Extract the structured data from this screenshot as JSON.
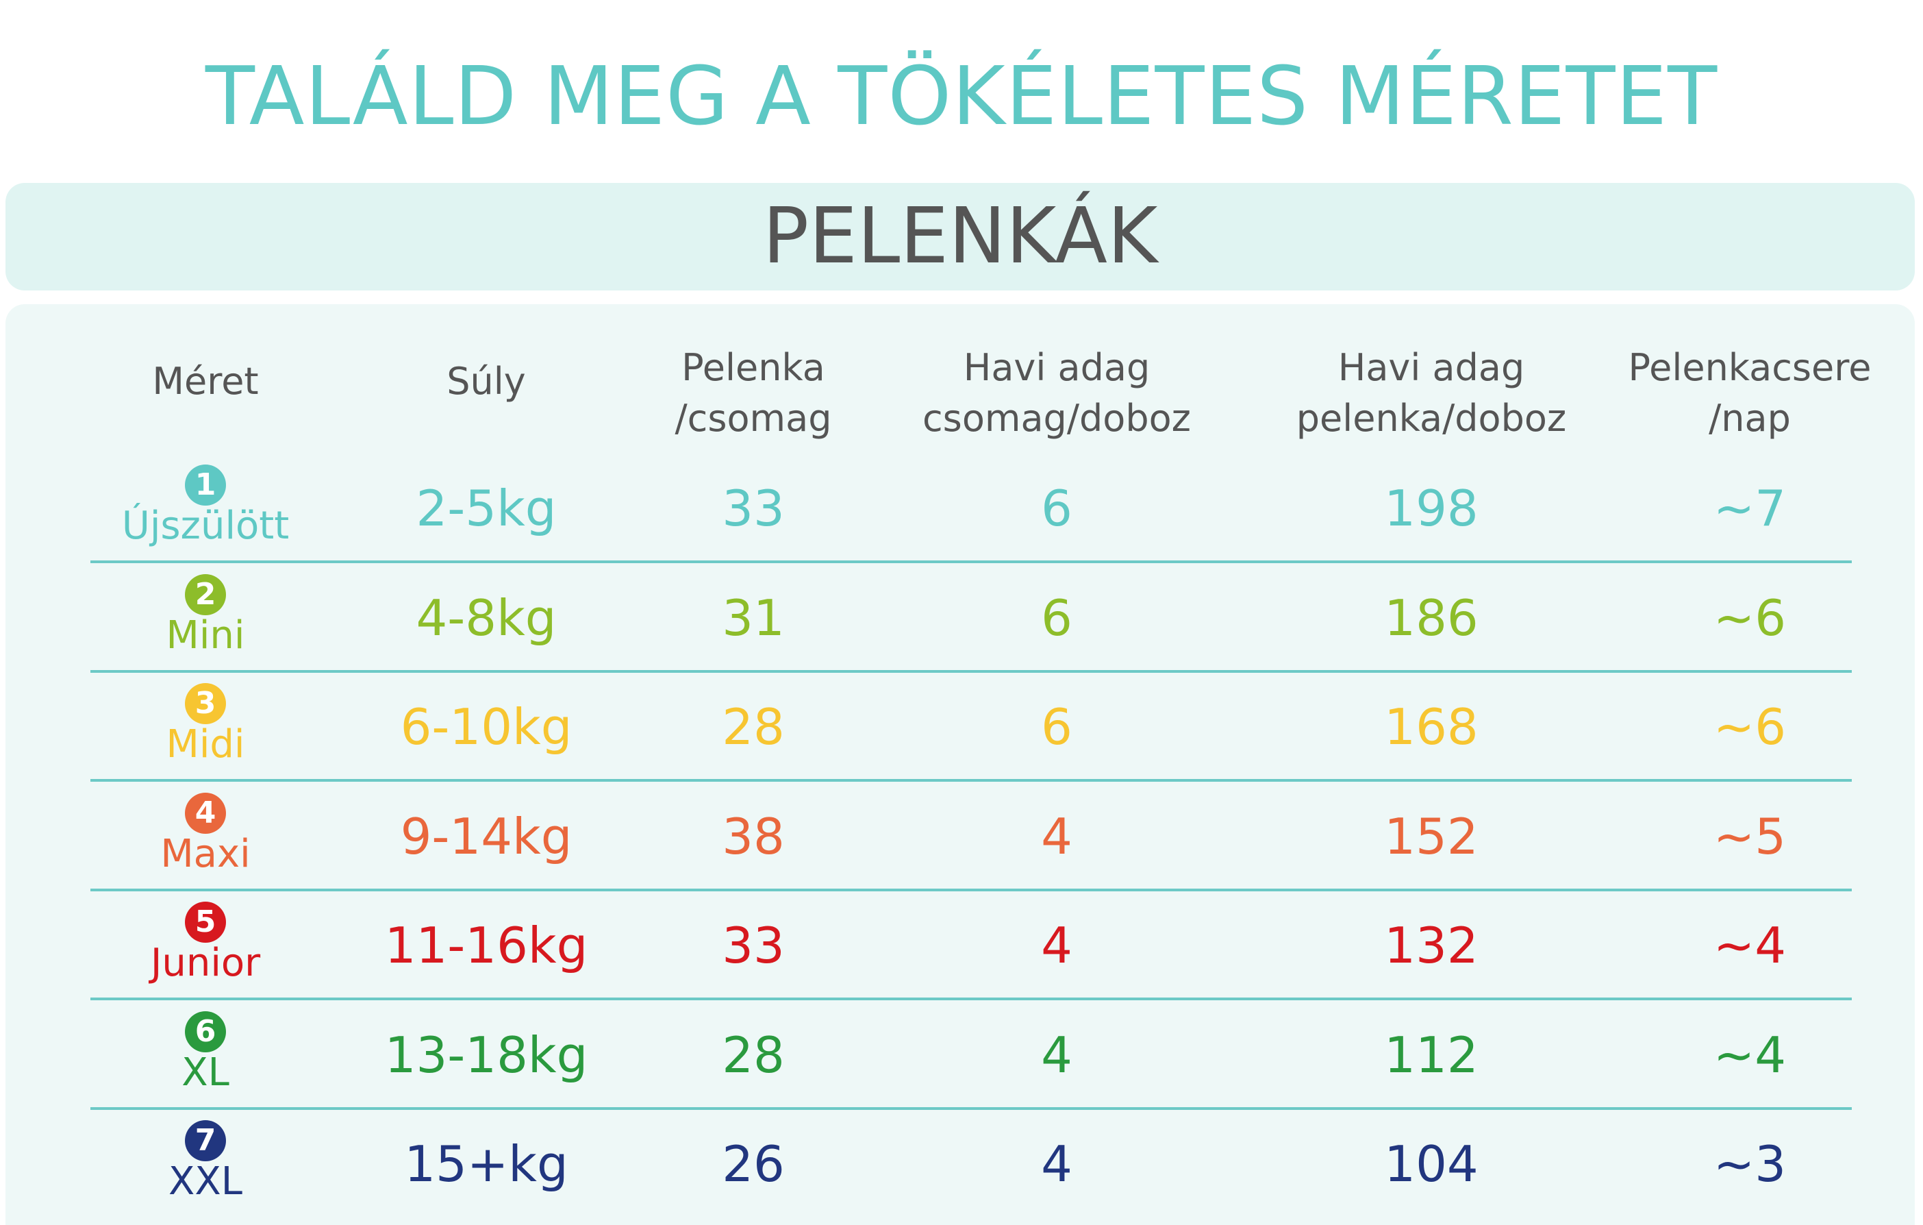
{
  "title": "TALÁLD MEG A TÖKÉLETES MÉRETET",
  "section": "PELENKÁK",
  "colors": {
    "title": "#5ec8c4",
    "section_text": "#555555",
    "header_text": "#555555",
    "divider": "#6cc9c6",
    "band": "#e0f4f2",
    "panel": "#eef8f7"
  },
  "columns": [
    {
      "lines": [
        "Méret"
      ]
    },
    {
      "lines": [
        "Súly"
      ]
    },
    {
      "lines": [
        "Pelenka",
        "/csomag"
      ]
    },
    {
      "lines": [
        "Havi adag",
        "csomag/doboz"
      ]
    },
    {
      "lines": [
        "Havi adag",
        "pelenka/doboz"
      ]
    },
    {
      "lines": [
        "Pelenkacsere",
        "/nap"
      ]
    }
  ],
  "rows": [
    {
      "num": "1",
      "size": "Újszülött",
      "weight": "2-5kg",
      "per_pack": "33",
      "packs_box": "6",
      "diapers_box": "198",
      "changes": "~7",
      "color": "#5ec8c4"
    },
    {
      "num": "2",
      "size": "Mini",
      "weight": "4-8kg",
      "per_pack": "31",
      "packs_box": "6",
      "diapers_box": "186",
      "changes": "~6",
      "color": "#8dbd2a"
    },
    {
      "num": "3",
      "size": "Midi",
      "weight": "6-10kg",
      "per_pack": "28",
      "packs_box": "6",
      "diapers_box": "168",
      "changes": "~6",
      "color": "#f7c531"
    },
    {
      "num": "4",
      "size": "Maxi",
      "weight": "9-14kg",
      "per_pack": "38",
      "packs_box": "4",
      "diapers_box": "152",
      "changes": "~5",
      "color": "#e9673c"
    },
    {
      "num": "5",
      "size": "Junior",
      "weight": "11-16kg",
      "per_pack": "33",
      "packs_box": "4",
      "diapers_box": "132",
      "changes": "~4",
      "color": "#d7191f"
    },
    {
      "num": "6",
      "size": "XL",
      "weight": "13-18kg",
      "per_pack": "28",
      "packs_box": "4",
      "diapers_box": "112",
      "changes": "~4",
      "color": "#2a9a3e"
    },
    {
      "num": "7",
      "size": "XXL",
      "weight": "15+kg",
      "per_pack": "26",
      "packs_box": "4",
      "diapers_box": "104",
      "changes": "~3",
      "color": "#21367f"
    }
  ]
}
